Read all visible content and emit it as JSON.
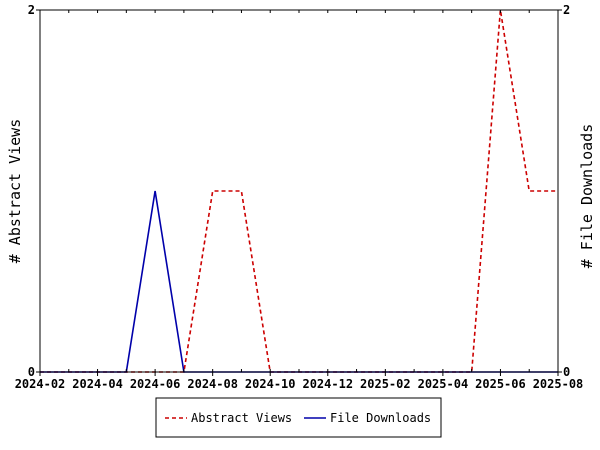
{
  "chart_data": {
    "type": "line",
    "title": "",
    "xlabel": "",
    "ylabel": "# Abstract Views",
    "y2label": "# File Downloads",
    "x": [
      "2024-02",
      "2024-03",
      "2024-04",
      "2024-05",
      "2024-06",
      "2024-07",
      "2024-08",
      "2024-09",
      "2024-10",
      "2024-11",
      "2024-12",
      "2025-01",
      "2025-02",
      "2025-03",
      "2025-04",
      "2025-05",
      "2025-06",
      "2025-07",
      "2025-08"
    ],
    "x_ticks": [
      "2024-02",
      "2024-04",
      "2024-06",
      "2024-08",
      "2024-10",
      "2024-12",
      "2025-02",
      "2025-04",
      "2025-06",
      "2025-08"
    ],
    "ylim": [
      0,
      2
    ],
    "y2lim": [
      0,
      2
    ],
    "y_ticks": [
      "0",
      "2"
    ],
    "y2_ticks": [
      "0",
      "2"
    ],
    "grid": false,
    "legend_position": "bottom-center",
    "series": [
      {
        "name": "Abstract Views",
        "axis": "left",
        "color": "#cc0000",
        "dash": "dashed",
        "values": [
          0,
          0,
          0,
          0,
          0,
          0,
          1,
          1,
          0,
          0,
          0,
          0,
          0,
          0,
          0,
          0,
          2,
          1,
          1
        ]
      },
      {
        "name": "File Downloads",
        "axis": "right",
        "color": "#0000aa",
        "dash": "solid",
        "values": [
          0,
          0,
          0,
          0,
          1,
          0,
          0,
          0,
          0,
          0,
          0,
          0,
          0,
          0,
          0,
          0,
          0,
          0,
          0
        ]
      }
    ]
  }
}
